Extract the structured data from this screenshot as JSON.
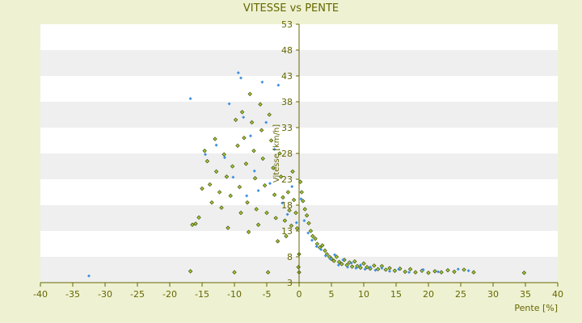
{
  "chart_data": {
    "type": "scatter",
    "title": "VITESSE vs PENTE",
    "xlabel": "Pente [%]",
    "ylabel": "Vitesse [km/h]",
    "xlim": [
      -40,
      40
    ],
    "ylim": [
      3,
      53
    ],
    "x_ticks": [
      -40,
      -35,
      -30,
      -25,
      -20,
      -15,
      -10,
      -5,
      0,
      5,
      10,
      15,
      20,
      25,
      30,
      35,
      40
    ],
    "y_ticks": [
      3,
      8,
      13,
      18,
      23,
      28,
      33,
      38,
      43,
      48,
      53
    ],
    "grid": "horizontal-bands",
    "legend": "none",
    "colors": {
      "background": "#eef2d2",
      "band_light": "#ffffff",
      "band_dark": "#efefef",
      "axis": "#666600",
      "text": "#666600",
      "series_a_fill": "#9acd32",
      "series_a_stroke": "#3a3a00",
      "series_b": "#3d8ee0"
    },
    "series": [
      {
        "color": "#9acd32",
        "stroke": "#3a3a00",
        "points": [
          [
            -16.8,
            5.2
          ],
          [
            -16.5,
            14.2
          ],
          [
            -16.0,
            14.4
          ],
          [
            -15.5,
            15.6
          ],
          [
            -15.0,
            21.2
          ],
          [
            -14.6,
            28.5
          ],
          [
            -14.2,
            26.5
          ],
          [
            -13.8,
            22.0
          ],
          [
            -13.5,
            18.5
          ],
          [
            -13.0,
            30.8
          ],
          [
            -12.8,
            24.5
          ],
          [
            -12.3,
            20.5
          ],
          [
            -12.0,
            17.5
          ],
          [
            -11.6,
            27.8
          ],
          [
            -11.2,
            23.5
          ],
          [
            -11.0,
            13.6
          ],
          [
            -10.6,
            19.8
          ],
          [
            -10.3,
            25.5
          ],
          [
            -10.0,
            5.0
          ],
          [
            -9.8,
            34.5
          ],
          [
            -9.5,
            29.5
          ],
          [
            -9.2,
            21.5
          ],
          [
            -9.0,
            16.5
          ],
          [
            -8.8,
            36.0
          ],
          [
            -8.5,
            31.0
          ],
          [
            -8.2,
            26.0
          ],
          [
            -8.0,
            18.5
          ],
          [
            -7.8,
            12.8
          ],
          [
            -7.6,
            39.5
          ],
          [
            -7.3,
            34.0
          ],
          [
            -7.0,
            28.5
          ],
          [
            -6.8,
            23.2
          ],
          [
            -6.6,
            17.2
          ],
          [
            -6.3,
            14.2
          ],
          [
            -6.0,
            37.5
          ],
          [
            -5.8,
            32.5
          ],
          [
            -5.6,
            27.0
          ],
          [
            -5.3,
            21.8
          ],
          [
            -5.0,
            16.5
          ],
          [
            -4.8,
            5.0
          ],
          [
            -4.6,
            35.5
          ],
          [
            -4.3,
            30.5
          ],
          [
            -4.0,
            25.2
          ],
          [
            -3.8,
            20.0
          ],
          [
            -3.6,
            15.5
          ],
          [
            -3.3,
            11.0
          ],
          [
            -3.0,
            28.0
          ],
          [
            -2.8,
            23.5
          ],
          [
            -2.5,
            19.5
          ],
          [
            -2.2,
            15.0
          ],
          [
            -2.0,
            12.0
          ],
          [
            -1.7,
            20.5
          ],
          [
            -1.5,
            17.0
          ],
          [
            -1.2,
            14.0
          ],
          [
            -1.0,
            24.5
          ],
          [
            -0.8,
            19.0
          ],
          [
            -0.5,
            16.5
          ],
          [
            -0.3,
            13.5
          ],
          [
            -0.1,
            6.0
          ],
          [
            0.0,
            5.0
          ],
          [
            0.0,
            8.5
          ],
          [
            0.2,
            22.5
          ],
          [
            0.4,
            20.5
          ],
          [
            0.6,
            18.8
          ],
          [
            0.9,
            17.2
          ],
          [
            1.2,
            16.0
          ],
          [
            1.5,
            14.5
          ],
          [
            1.8,
            13.0
          ],
          [
            2.1,
            12.0
          ],
          [
            2.5,
            11.5
          ],
          [
            2.8,
            10.5
          ],
          [
            3.2,
            9.8
          ],
          [
            3.6,
            10.2
          ],
          [
            4.0,
            9.2
          ],
          [
            4.3,
            8.5
          ],
          [
            4.7,
            8.0
          ],
          [
            5.0,
            7.6
          ],
          [
            5.4,
            7.2
          ],
          [
            5.8,
            8.0
          ],
          [
            6.2,
            7.0
          ],
          [
            6.6,
            6.6
          ],
          [
            7.0,
            7.4
          ],
          [
            7.4,
            6.4
          ],
          [
            7.8,
            6.9
          ],
          [
            8.2,
            6.1
          ],
          [
            8.6,
            7.1
          ],
          [
            9.0,
            6.2
          ],
          [
            9.5,
            5.9
          ],
          [
            10.0,
            6.7
          ],
          [
            10.5,
            6.0
          ],
          [
            11.0,
            5.7
          ],
          [
            11.6,
            6.3
          ],
          [
            12.2,
            5.6
          ],
          [
            12.8,
            6.2
          ],
          [
            13.4,
            5.5
          ],
          [
            14.0,
            5.8
          ],
          [
            14.8,
            5.3
          ],
          [
            15.6,
            5.7
          ],
          [
            16.4,
            5.1
          ],
          [
            17.2,
            5.6
          ],
          [
            18.0,
            5.0
          ],
          [
            19.0,
            5.3
          ],
          [
            20.0,
            4.9
          ],
          [
            21.0,
            5.2
          ],
          [
            22.0,
            5.0
          ],
          [
            23.0,
            5.4
          ],
          [
            24.0,
            5.1
          ],
          [
            25.5,
            5.5
          ],
          [
            27.0,
            5.0
          ],
          [
            34.8,
            4.9
          ]
        ]
      },
      {
        "color": "#3d8ee0",
        "points": [
          [
            -32.5,
            4.3
          ],
          [
            -16.8,
            38.6
          ],
          [
            -14.5,
            27.8
          ],
          [
            -12.8,
            29.6
          ],
          [
            -11.5,
            27.2
          ],
          [
            -10.8,
            37.6
          ],
          [
            -10.2,
            23.4
          ],
          [
            -9.4,
            43.6
          ],
          [
            -9.0,
            42.6
          ],
          [
            -8.6,
            35.0
          ],
          [
            -8.1,
            19.8
          ],
          [
            -7.5,
            31.4
          ],
          [
            -6.9,
            24.6
          ],
          [
            -6.3,
            20.8
          ],
          [
            -5.7,
            41.8
          ],
          [
            -5.1,
            34.0
          ],
          [
            -4.5,
            22.2
          ],
          [
            -3.8,
            28.8
          ],
          [
            -3.2,
            41.2
          ],
          [
            -2.6,
            18.4
          ],
          [
            -1.8,
            16.2
          ],
          [
            -1.1,
            21.6
          ],
          [
            -0.4,
            14.6
          ],
          [
            0.3,
            19.2
          ],
          [
            0.8,
            15.0
          ],
          [
            1.4,
            12.6
          ],
          [
            2.0,
            11.2
          ],
          [
            2.7,
            10.0
          ],
          [
            3.4,
            9.4
          ],
          [
            4.1,
            8.2
          ],
          [
            4.8,
            7.6
          ],
          [
            5.5,
            8.4
          ],
          [
            6.1,
            6.4
          ],
          [
            6.8,
            7.4
          ],
          [
            7.5,
            6.0
          ],
          [
            8.1,
            6.8
          ],
          [
            8.8,
            5.8
          ],
          [
            9.5,
            6.4
          ],
          [
            10.2,
            5.6
          ],
          [
            11.0,
            6.0
          ],
          [
            11.8,
            5.4
          ],
          [
            12.8,
            5.8
          ],
          [
            14.0,
            5.2
          ],
          [
            15.4,
            5.6
          ],
          [
            17.0,
            5.0
          ],
          [
            19.2,
            5.5
          ],
          [
            21.5,
            5.1
          ],
          [
            24.6,
            5.6
          ],
          [
            26.2,
            5.3
          ]
        ]
      }
    ]
  }
}
